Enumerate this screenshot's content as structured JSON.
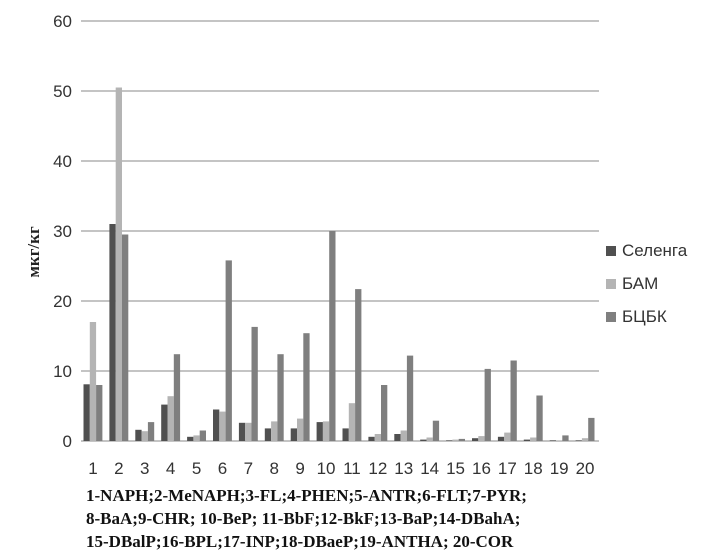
{
  "chart_data": {
    "type": "bar",
    "ylabel": "мкг/кг",
    "xlabel": "",
    "ylim": [
      0,
      60
    ],
    "yticks": [
      0,
      10,
      20,
      30,
      40,
      50,
      60
    ],
    "grid": true,
    "legend_position": "right",
    "categories": [
      "1",
      "2",
      "3",
      "4",
      "5",
      "6",
      "7",
      "8",
      "9",
      "10",
      "11",
      "12",
      "13",
      "14",
      "15",
      "16",
      "17",
      "18",
      "19",
      "20"
    ],
    "series": [
      {
        "name": "Селенга",
        "color": "#505050",
        "values": [
          8.1,
          31.0,
          1.6,
          5.2,
          0.6,
          4.5,
          2.6,
          1.8,
          1.8,
          2.7,
          1.8,
          0.6,
          1.0,
          0.2,
          0.1,
          0.4,
          0.6,
          0.2,
          0.1,
          0.1
        ]
      },
      {
        "name": "БАМ",
        "color": "#b4b4b4",
        "values": [
          17.0,
          50.5,
          1.4,
          6.4,
          0.8,
          4.2,
          2.6,
          2.8,
          3.2,
          2.8,
          5.4,
          1.0,
          1.5,
          0.5,
          0.2,
          0.7,
          1.2,
          0.5,
          0.1,
          0.4
        ]
      },
      {
        "name": "БЦБК",
        "color": "#7f7f7f",
        "values": [
          8.0,
          29.5,
          2.7,
          12.4,
          1.5,
          25.8,
          16.3,
          12.4,
          15.4,
          30.0,
          21.7,
          8.0,
          12.2,
          2.9,
          0.3,
          10.3,
          11.5,
          6.5,
          0.8,
          3.3
        ]
      }
    ]
  },
  "caption": {
    "lines": [
      "1-NAPH;2-MeNAPH;3-FL;4-PHEN;5-ANTR;6-FLT;7-PYR;",
      "8-BaA;9-CHR; 10-BeP; 11-BbF;12-BkF;13-BaP;14-DBahA;",
      "15-DBalP;16-BPL;17-INP;18-DBaeP;19-ANTHA; 20-COR"
    ]
  }
}
